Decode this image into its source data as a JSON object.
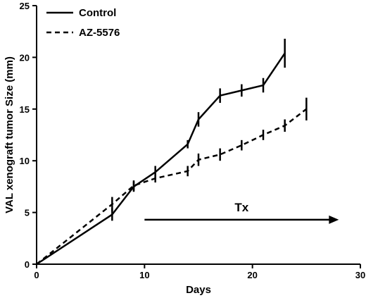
{
  "chart_data": {
    "type": "line",
    "xlabel": "Days",
    "ylabel": "VAL xenograft tumor Size (mm)",
    "xlim": [
      0,
      30
    ],
    "ylim": [
      0,
      25
    ],
    "xticks": [
      0,
      10,
      20,
      30
    ],
    "yticks": [
      0,
      5,
      10,
      15,
      20,
      25
    ],
    "grid": false,
    "legend_position": "top-left",
    "series": [
      {
        "name": "Control",
        "style": "solid",
        "color": "#000000",
        "x": [
          0,
          7,
          9,
          11,
          14,
          15,
          17,
          19,
          21,
          23
        ],
        "y": [
          0,
          4.8,
          7.5,
          8.9,
          11.6,
          14.0,
          16.3,
          16.8,
          17.3,
          20.4
        ],
        "err": [
          0,
          0.6,
          0.5,
          0.6,
          0.4,
          0.7,
          0.7,
          0.6,
          0.7,
          1.4
        ]
      },
      {
        "name": "AZ-5576",
        "style": "dashed",
        "color": "#000000",
        "x": [
          0,
          7,
          9,
          11,
          14,
          15,
          17,
          19,
          21,
          23,
          25
        ],
        "y": [
          0,
          5.8,
          7.6,
          8.3,
          9.0,
          10.1,
          10.6,
          11.5,
          12.5,
          13.4,
          15.0
        ],
        "err": [
          0,
          0.7,
          0.5,
          0.4,
          0.5,
          0.6,
          0.6,
          0.5,
          0.5,
          0.6,
          1.1
        ]
      }
    ],
    "annotations": [
      {
        "text": "Tx",
        "arrow_from_x": 10,
        "arrow_to_x": 28,
        "arrow_y": 4.3
      }
    ]
  }
}
